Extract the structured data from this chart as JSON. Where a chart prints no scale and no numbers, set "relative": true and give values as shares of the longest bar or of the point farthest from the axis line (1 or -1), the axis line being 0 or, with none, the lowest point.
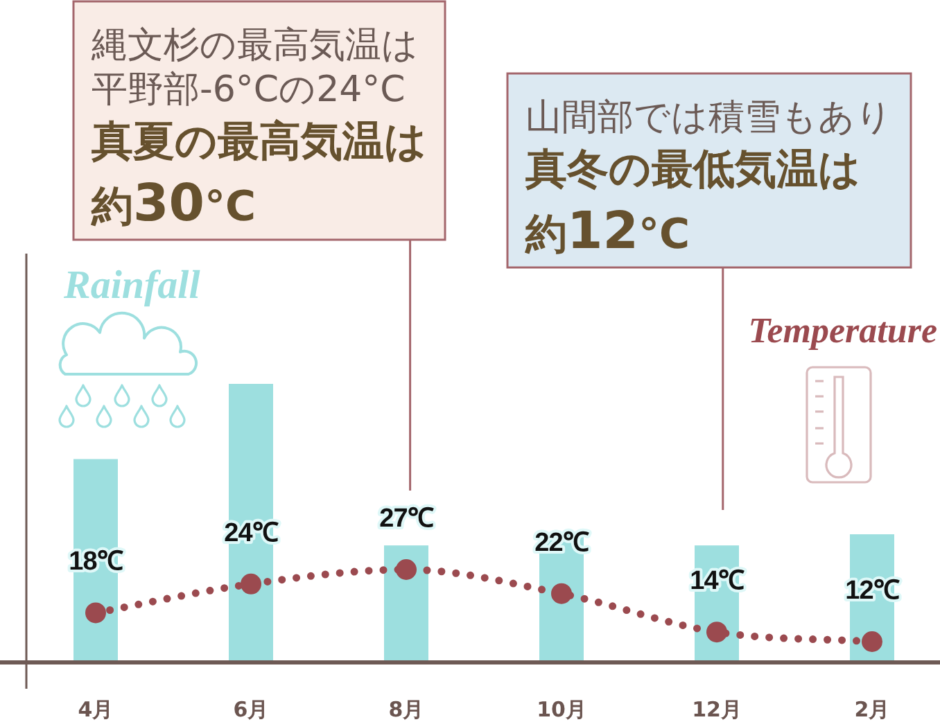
{
  "chart_data": [
    {
      "type": "bar",
      "relative": true,
      "categories": [
        "4月",
        "6月",
        "8月",
        "10月",
        "12月",
        "2月"
      ],
      "series": [
        {
          "name": "Rainfall",
          "color": "#9ddfdf",
          "values": [
            0.73,
            1,
            0.42,
            0.46,
            0.42,
            0.46
          ]
        }
      ]
    },
    {
      "type": "line",
      "series": [
        {
          "name": "Temperature",
          "color": "#9b4a4f",
          "marker": "circle",
          "line_style": "dotted",
          "values": [
            18,
            24,
            27,
            22,
            14,
            12
          ],
          "value_labels": [
            "18℃",
            "24℃",
            "27℃",
            "22℃",
            "14℃",
            "12℃"
          ]
        }
      ],
      "annotations": [
        "縄文杉の最高気温は平野部-6°Cの24°C**真夏の最高気温は約30°C**",
        "山間部では積雪もあり**真冬の最低気温は約12°C**"
      ]
    }
  ]
}
